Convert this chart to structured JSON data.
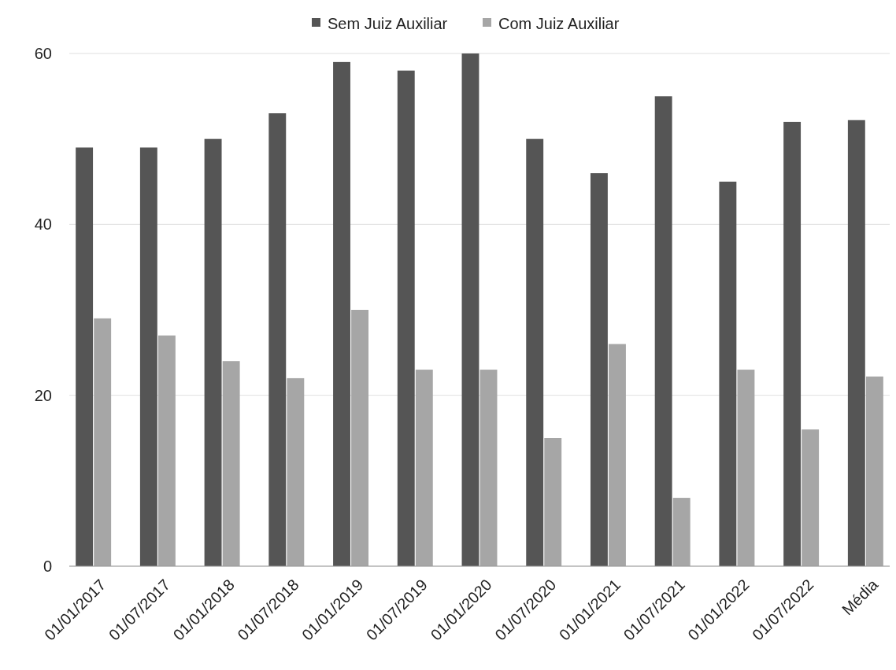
{
  "chart_data": {
    "type": "bar",
    "categories": [
      "01/01/2017",
      "01/07/2017",
      "01/01/2018",
      "01/07/2018",
      "01/01/2019",
      "01/07/2019",
      "01/01/2020",
      "01/07/2020",
      "01/01/2021",
      "01/07/2021",
      "01/01/2022",
      "01/07/2022",
      "Média"
    ],
    "series": [
      {
        "name": "Sem Juiz Auxiliar",
        "color": "#555555",
        "values": [
          49,
          49,
          50,
          53,
          59,
          58,
          60,
          50,
          46,
          55,
          45,
          52,
          52.2
        ]
      },
      {
        "name": "Com Juiz Auxiliar",
        "color": "#a6a6a6",
        "values": [
          29,
          27,
          24,
          22,
          30,
          23,
          23,
          15,
          26,
          8,
          23,
          16,
          22.2
        ]
      }
    ],
    "ylim": [
      0,
      60
    ],
    "yticks": [
      0,
      20,
      40,
      60
    ],
    "grid": "y",
    "legend": "top"
  }
}
